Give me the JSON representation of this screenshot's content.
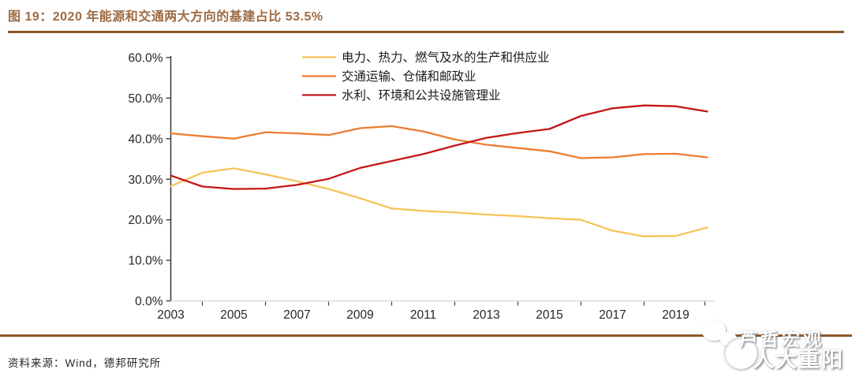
{
  "header": {
    "title": "图 19：2020 年能源和交通两大方向的基建占比 53.5%"
  },
  "footer": {
    "source": "资料来源：Wind，德邦研究所"
  },
  "watermark": {
    "line1": "芦哲宏观",
    "line2": "人大重阳",
    "icons": [
      "wechat-logo",
      "seal-logo"
    ]
  },
  "colors": {
    "title_brown": "#9D6B44",
    "rule_brown": "#8B572A",
    "axis_dark": "#3F3F3F",
    "axis_light": "#D9D9D9",
    "label_text": "#262626",
    "legend_text": "#1A1A1A",
    "series_power": "#F6C35A",
    "series_transport": "#ED7D31",
    "series_water": "#C41717"
  },
  "chart_data": {
    "type": "line",
    "title": "",
    "xlabel": "",
    "ylabel": "",
    "grid": false,
    "legend_position": "top-center",
    "ylim": [
      0,
      60
    ],
    "ytick_labels": [
      "0.0%",
      "10.0%",
      "20.0%",
      "30.0%",
      "40.0%",
      "50.0%",
      "60.0%"
    ],
    "xtick_labels": [
      "2003",
      "2005",
      "2007",
      "2009",
      "2011",
      "2013",
      "2015",
      "2017",
      "2019"
    ],
    "x": [
      2003,
      2004,
      2005,
      2006,
      2007,
      2008,
      2009,
      2010,
      2011,
      2012,
      2013,
      2014,
      2015,
      2016,
      2017,
      2018,
      2019,
      2020
    ],
    "series": [
      {
        "name": "电力、热力、燃气及水的生产和供应业",
        "color_key": "series_power",
        "values": [
          28.3,
          31.6,
          32.7,
          31.2,
          29.5,
          27.6,
          25.3,
          22.8,
          22.2,
          21.8,
          21.3,
          20.9,
          20.4,
          20.0,
          17.3,
          15.9,
          16.0,
          18.1
        ]
      },
      {
        "name": "交通运输、仓储和邮政业",
        "color_key": "series_transport",
        "values": [
          41.3,
          40.6,
          40.0,
          41.6,
          41.3,
          40.9,
          42.6,
          43.1,
          41.8,
          39.8,
          38.5,
          37.7,
          36.9,
          35.2,
          35.4,
          36.2,
          36.3,
          35.4
        ]
      },
      {
        "name": "水利、环境和公共设施管理业",
        "color_key": "series_water",
        "values": [
          30.9,
          28.2,
          27.6,
          27.7,
          28.6,
          30.1,
          32.8,
          34.5,
          36.2,
          38.3,
          40.2,
          41.4,
          42.4,
          45.6,
          47.5,
          48.2,
          48.0,
          46.7
        ]
      }
    ]
  }
}
